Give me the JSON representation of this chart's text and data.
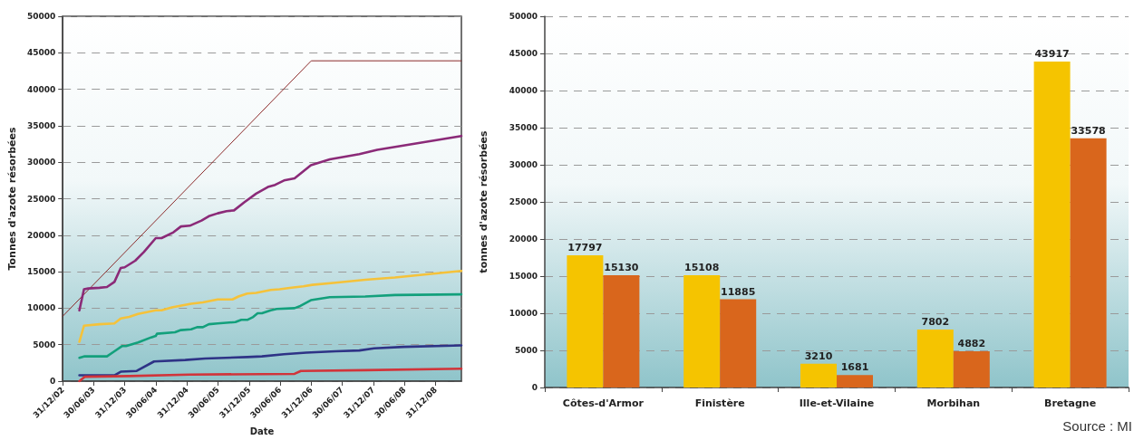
{
  "chart_data": [
    {
      "type": "line",
      "xlabel": "Date",
      "ylabel": "Tonnes d'azote résorbées",
      "xlim": [
        "2002-12-31",
        "2009-06-01"
      ],
      "xticks": [
        {
          "value": "2002-12-31",
          "label": "31/12/02"
        },
        {
          "value": "2003-06-30",
          "label": "30/06/03"
        },
        {
          "value": "2003-12-31",
          "label": "31/12/03"
        },
        {
          "value": "2004-06-30",
          "label": "30/06/04"
        },
        {
          "value": "2004-12-31",
          "label": "31/12/04"
        },
        {
          "value": "2005-06-30",
          "label": "30/06/05"
        },
        {
          "value": "2005-12-31",
          "label": "31/12/05"
        },
        {
          "value": "2006-06-30",
          "label": "30/06/06"
        },
        {
          "value": "2006-12-31",
          "label": "31/12/06"
        },
        {
          "value": "2007-06-30",
          "label": "30/06/07"
        },
        {
          "value": "2007-12-31",
          "label": "31/12/07"
        },
        {
          "value": "2008-06-30",
          "label": "30/06/08"
        },
        {
          "value": "2008-12-31",
          "label": "31/12/08"
        }
      ],
      "ylim": [
        0,
        50000
      ],
      "yticks": [
        0,
        5000,
        10000,
        15000,
        20000,
        25000,
        30000,
        35000,
        40000,
        45000,
        50000
      ],
      "grid": "y",
      "marker": "none",
      "line_style": "solid",
      "series": [
        {
          "color": "#8b2a2a",
          "x": [
            "2002-12-31",
            "2006-12-31",
            "2009-06-01"
          ],
          "values": [
            8900,
            43900,
            43900
          ]
        },
        {
          "color": "#8b2a78",
          "x": [
            "2003-04-08",
            "2003-05-05",
            "2003-05-30",
            "2003-08-04",
            "2003-09-17",
            "2003-10-31",
            "2003-12-07",
            "2003-12-30",
            "2004-03-01",
            "2004-04-21",
            "2004-06-30",
            "2004-08-03",
            "2004-10-12",
            "2004-11-25",
            "2005-01-16",
            "2005-03-26",
            "2005-05-08",
            "2005-06-29",
            "2005-08-20",
            "2005-10-03",
            "2005-12-02",
            "2006-02-10",
            "2006-04-20",
            "2006-06-02",
            "2006-07-24",
            "2006-09-24",
            "2006-12-29",
            "2007-04-19",
            "2007-10-10",
            "2008-01-23",
            "2009-06-01"
          ],
          "values": [
            9700,
            12600,
            12700,
            12800,
            12900,
            13600,
            15500,
            15600,
            16500,
            17700,
            19600,
            19600,
            20400,
            21200,
            21300,
            22000,
            22600,
            23000,
            23300,
            23400,
            24500,
            25700,
            26600,
            26900,
            27500,
            27800,
            29600,
            30400,
            31100,
            31700,
            33600
          ]
        },
        {
          "color": "#f5c23a",
          "x": [
            "2003-04-08",
            "2003-05-05",
            "2003-08-04",
            "2003-10-31",
            "2003-12-07",
            "2004-01-26",
            "2004-03-18",
            "2004-06-30",
            "2004-08-03",
            "2004-10-03",
            "2005-01-24",
            "2005-04-03",
            "2005-06-29",
            "2005-09-24",
            "2005-10-29",
            "2005-12-20",
            "2006-02-10",
            "2006-05-07",
            "2006-06-28",
            "2006-09-06",
            "2006-11-15",
            "2007-01-06",
            "2007-05-24",
            "2007-11-14",
            "2008-05-06",
            "2008-10-27",
            "2009-06-01"
          ],
          "values": [
            5400,
            7600,
            7800,
            7900,
            8600,
            8800,
            9200,
            9700,
            9700,
            10100,
            10600,
            10800,
            11200,
            11200,
            11600,
            12000,
            12100,
            12500,
            12600,
            12800,
            13000,
            13200,
            13500,
            13900,
            14200,
            14600,
            15100
          ]
        },
        {
          "color": "#13a07c",
          "x": [
            "2003-04-08",
            "2003-05-09",
            "2003-09-17",
            "2003-10-31",
            "2003-12-14",
            "2004-01-07",
            "2004-03-18",
            "2004-06-03",
            "2004-06-30",
            "2004-07-07",
            "2004-10-21",
            "2004-11-25",
            "2005-01-24",
            "2005-02-28",
            "2005-04-03",
            "2005-05-08",
            "2005-06-29",
            "2005-10-11",
            "2005-11-15",
            "2005-12-20",
            "2006-01-24",
            "2006-02-19",
            "2006-03-16",
            "2006-05-07",
            "2006-06-11",
            "2006-09-24",
            "2006-10-28",
            "2006-12-29",
            "2007-04-19",
            "2007-11-14",
            "2008-05-06",
            "2009-06-01"
          ],
          "values": [
            3200,
            3400,
            3400,
            4100,
            4800,
            4800,
            5300,
            6000,
            6200,
            6500,
            6700,
            7000,
            7100,
            7400,
            7400,
            7800,
            7900,
            8100,
            8400,
            8400,
            8800,
            9300,
            9300,
            9700,
            9900,
            10000,
            10300,
            11100,
            11500,
            11600,
            11800,
            11900
          ]
        },
        {
          "color": "#2e3386",
          "x": [
            "2003-04-08",
            "2003-10-31",
            "2003-12-07",
            "2004-03-10",
            "2004-06-20",
            "2004-12-20",
            "2005-04-17",
            "2005-12-20",
            "2006-03-16",
            "2006-07-24",
            "2006-12-02",
            "2007-05-24",
            "2007-10-10",
            "2008-01-05",
            "2008-06-27",
            "2009-06-01"
          ],
          "values": [
            800,
            800,
            1300,
            1400,
            2700,
            2900,
            3100,
            3300,
            3400,
            3700,
            3900,
            4100,
            4200,
            4500,
            4700,
            4900
          ]
        },
        {
          "color": "#d1343a",
          "x": [
            "2003-04-08",
            "2003-05-09",
            "2004-01-26",
            "2005-01-14",
            "2006-09-24",
            "2006-10-31",
            "2007-11-14",
            "2009-06-01"
          ],
          "values": [
            0,
            600,
            700,
            900,
            1000,
            1400,
            1500,
            1700
          ]
        }
      ]
    },
    {
      "type": "bar",
      "ylabel": "tonnes d'azote résorbées",
      "categories": [
        "Côtes-d'Armor",
        "Finistère",
        "Ille-et-Vilaine",
        "Morbihan",
        "Bretagne"
      ],
      "ylim": [
        0,
        50000
      ],
      "yticks": [
        0,
        5000,
        10000,
        15000,
        20000,
        25000,
        30000,
        35000,
        40000,
        45000,
        50000
      ],
      "grid": "y",
      "data_labels": true,
      "annotations": [
        "Source : MI"
      ],
      "series": [
        {
          "color": "#f5c400",
          "values": [
            17797,
            15108,
            3210,
            7802,
            43917
          ]
        },
        {
          "color": "#d9661c",
          "values": [
            15130,
            11885,
            1681,
            4882,
            33578
          ]
        }
      ]
    }
  ]
}
